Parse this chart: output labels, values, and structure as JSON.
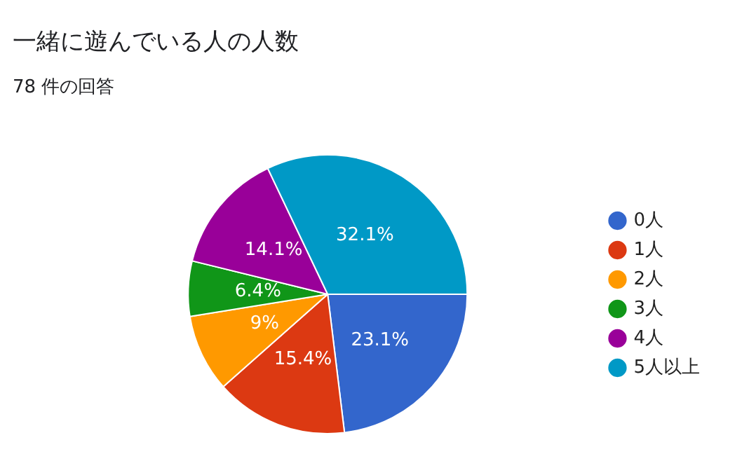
{
  "chart_data": {
    "type": "pie",
    "title": "一緒に遊んでいる人の人数",
    "subtitle": "78 件の回答",
    "categories": [
      "0人",
      "1人",
      "2人",
      "3人",
      "4人",
      "5人以上"
    ],
    "values": [
      23.1,
      15.4,
      9,
      6.4,
      14.1,
      32.1
    ],
    "colors": [
      "#3366cc",
      "#dc3912",
      "#ff9900",
      "#109618",
      "#990099",
      "#0099c6"
    ],
    "value_labels": [
      "23.1%",
      "15.4%",
      "9%",
      "6.4%",
      "14.1%",
      "32.1%"
    ],
    "legend": "right"
  }
}
